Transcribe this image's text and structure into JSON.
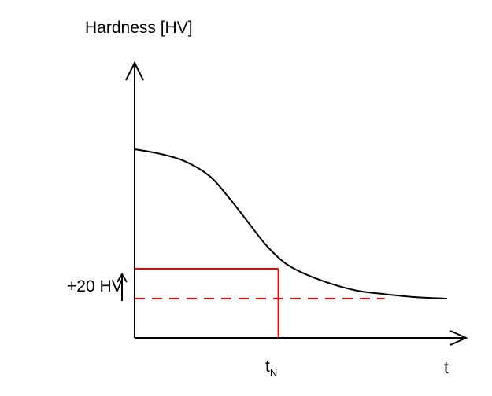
{
  "chart_data": {
    "type": "line",
    "ylabel": "Hardness [HV]",
    "xlabel": "t",
    "annotations": {
      "offset_label": "+20 HV",
      "tn_main": "t",
      "tn_sub": "N"
    },
    "series": [
      {
        "x": [
          0,
          0.08,
          0.16,
          0.24,
          0.3,
          0.36,
          0.42,
          0.48,
          0.54,
          0.6,
          0.66,
          0.72,
          0.8,
          0.9,
          1.0
        ],
        "y": [
          1.0,
          0.97,
          0.92,
          0.82,
          0.68,
          0.52,
          0.36,
          0.24,
          0.17,
          0.12,
          0.08,
          0.05,
          0.03,
          0.01,
          0.0
        ]
      }
    ],
    "reference_lines": {
      "t_n": 0.46,
      "baseline_y": 0.0,
      "threshold_y": 0.2
    },
    "colors": {
      "curve": "#000000",
      "axes": "#000000",
      "reference": "#ff0000"
    }
  }
}
